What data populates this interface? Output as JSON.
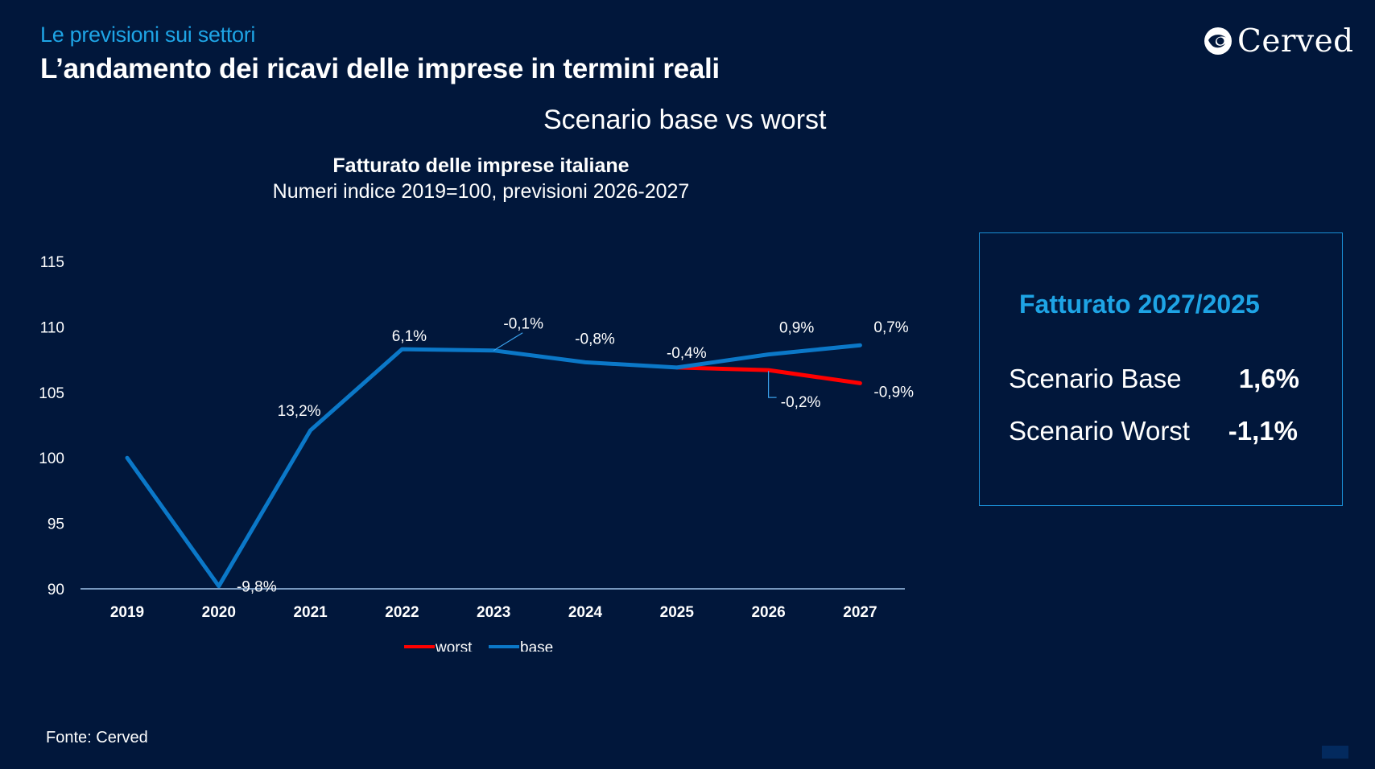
{
  "header": {
    "kicker": "Le previsioni sui settori",
    "title": "L’andamento dei ricavi delle imprese in termini reali",
    "logo_text": "Cerved",
    "logo_icon": "cerved-swirl-icon"
  },
  "section_title": "Scenario base vs worst",
  "colors": {
    "background": "#01173b",
    "accent": "#1ea4e5",
    "base_line": "#0b78c8",
    "worst_line": "#ff0000",
    "box_border": "#1a8fd6"
  },
  "chart_data": {
    "type": "line",
    "title": "Fatturato delle imprese italiane",
    "subtitle": "Numeri indice 2019=100, previsioni 2026-2027",
    "xlabel": "",
    "ylabel": "",
    "categories": [
      "2019",
      "2020",
      "2021",
      "2022",
      "2023",
      "2024",
      "2025",
      "2026",
      "2027"
    ],
    "ylim": [
      90,
      115
    ],
    "yticks": [
      "90",
      "95",
      "100",
      "105",
      "110",
      "115"
    ],
    "grid": false,
    "legend_position": "bottom-center",
    "series": [
      {
        "name": "worst",
        "color": "#ff0000",
        "values": [
          null,
          null,
          null,
          null,
          null,
          null,
          106.9,
          106.7,
          105.7
        ],
        "labels": [
          null,
          null,
          null,
          null,
          null,
          null,
          null,
          "-0,2%",
          "-0,9%"
        ]
      },
      {
        "name": "base",
        "color": "#0b78c8",
        "values": [
          100.0,
          90.2,
          102.1,
          108.3,
          108.2,
          107.3,
          106.9,
          107.9,
          108.6
        ],
        "labels": [
          null,
          "-9,8%",
          "13,2%",
          "6,1%",
          "-0,1%",
          "-0,8%",
          "-0,4%",
          "0,9%",
          "0,7%"
        ]
      }
    ]
  },
  "summary": {
    "title": "Fatturato 2027/2025",
    "rows": [
      {
        "label": "Scenario Base",
        "value": "1,6%"
      },
      {
        "label": "Scenario Worst",
        "value": "-1,1%"
      }
    ]
  },
  "footer": {
    "source": "Fonte: Cerved"
  }
}
